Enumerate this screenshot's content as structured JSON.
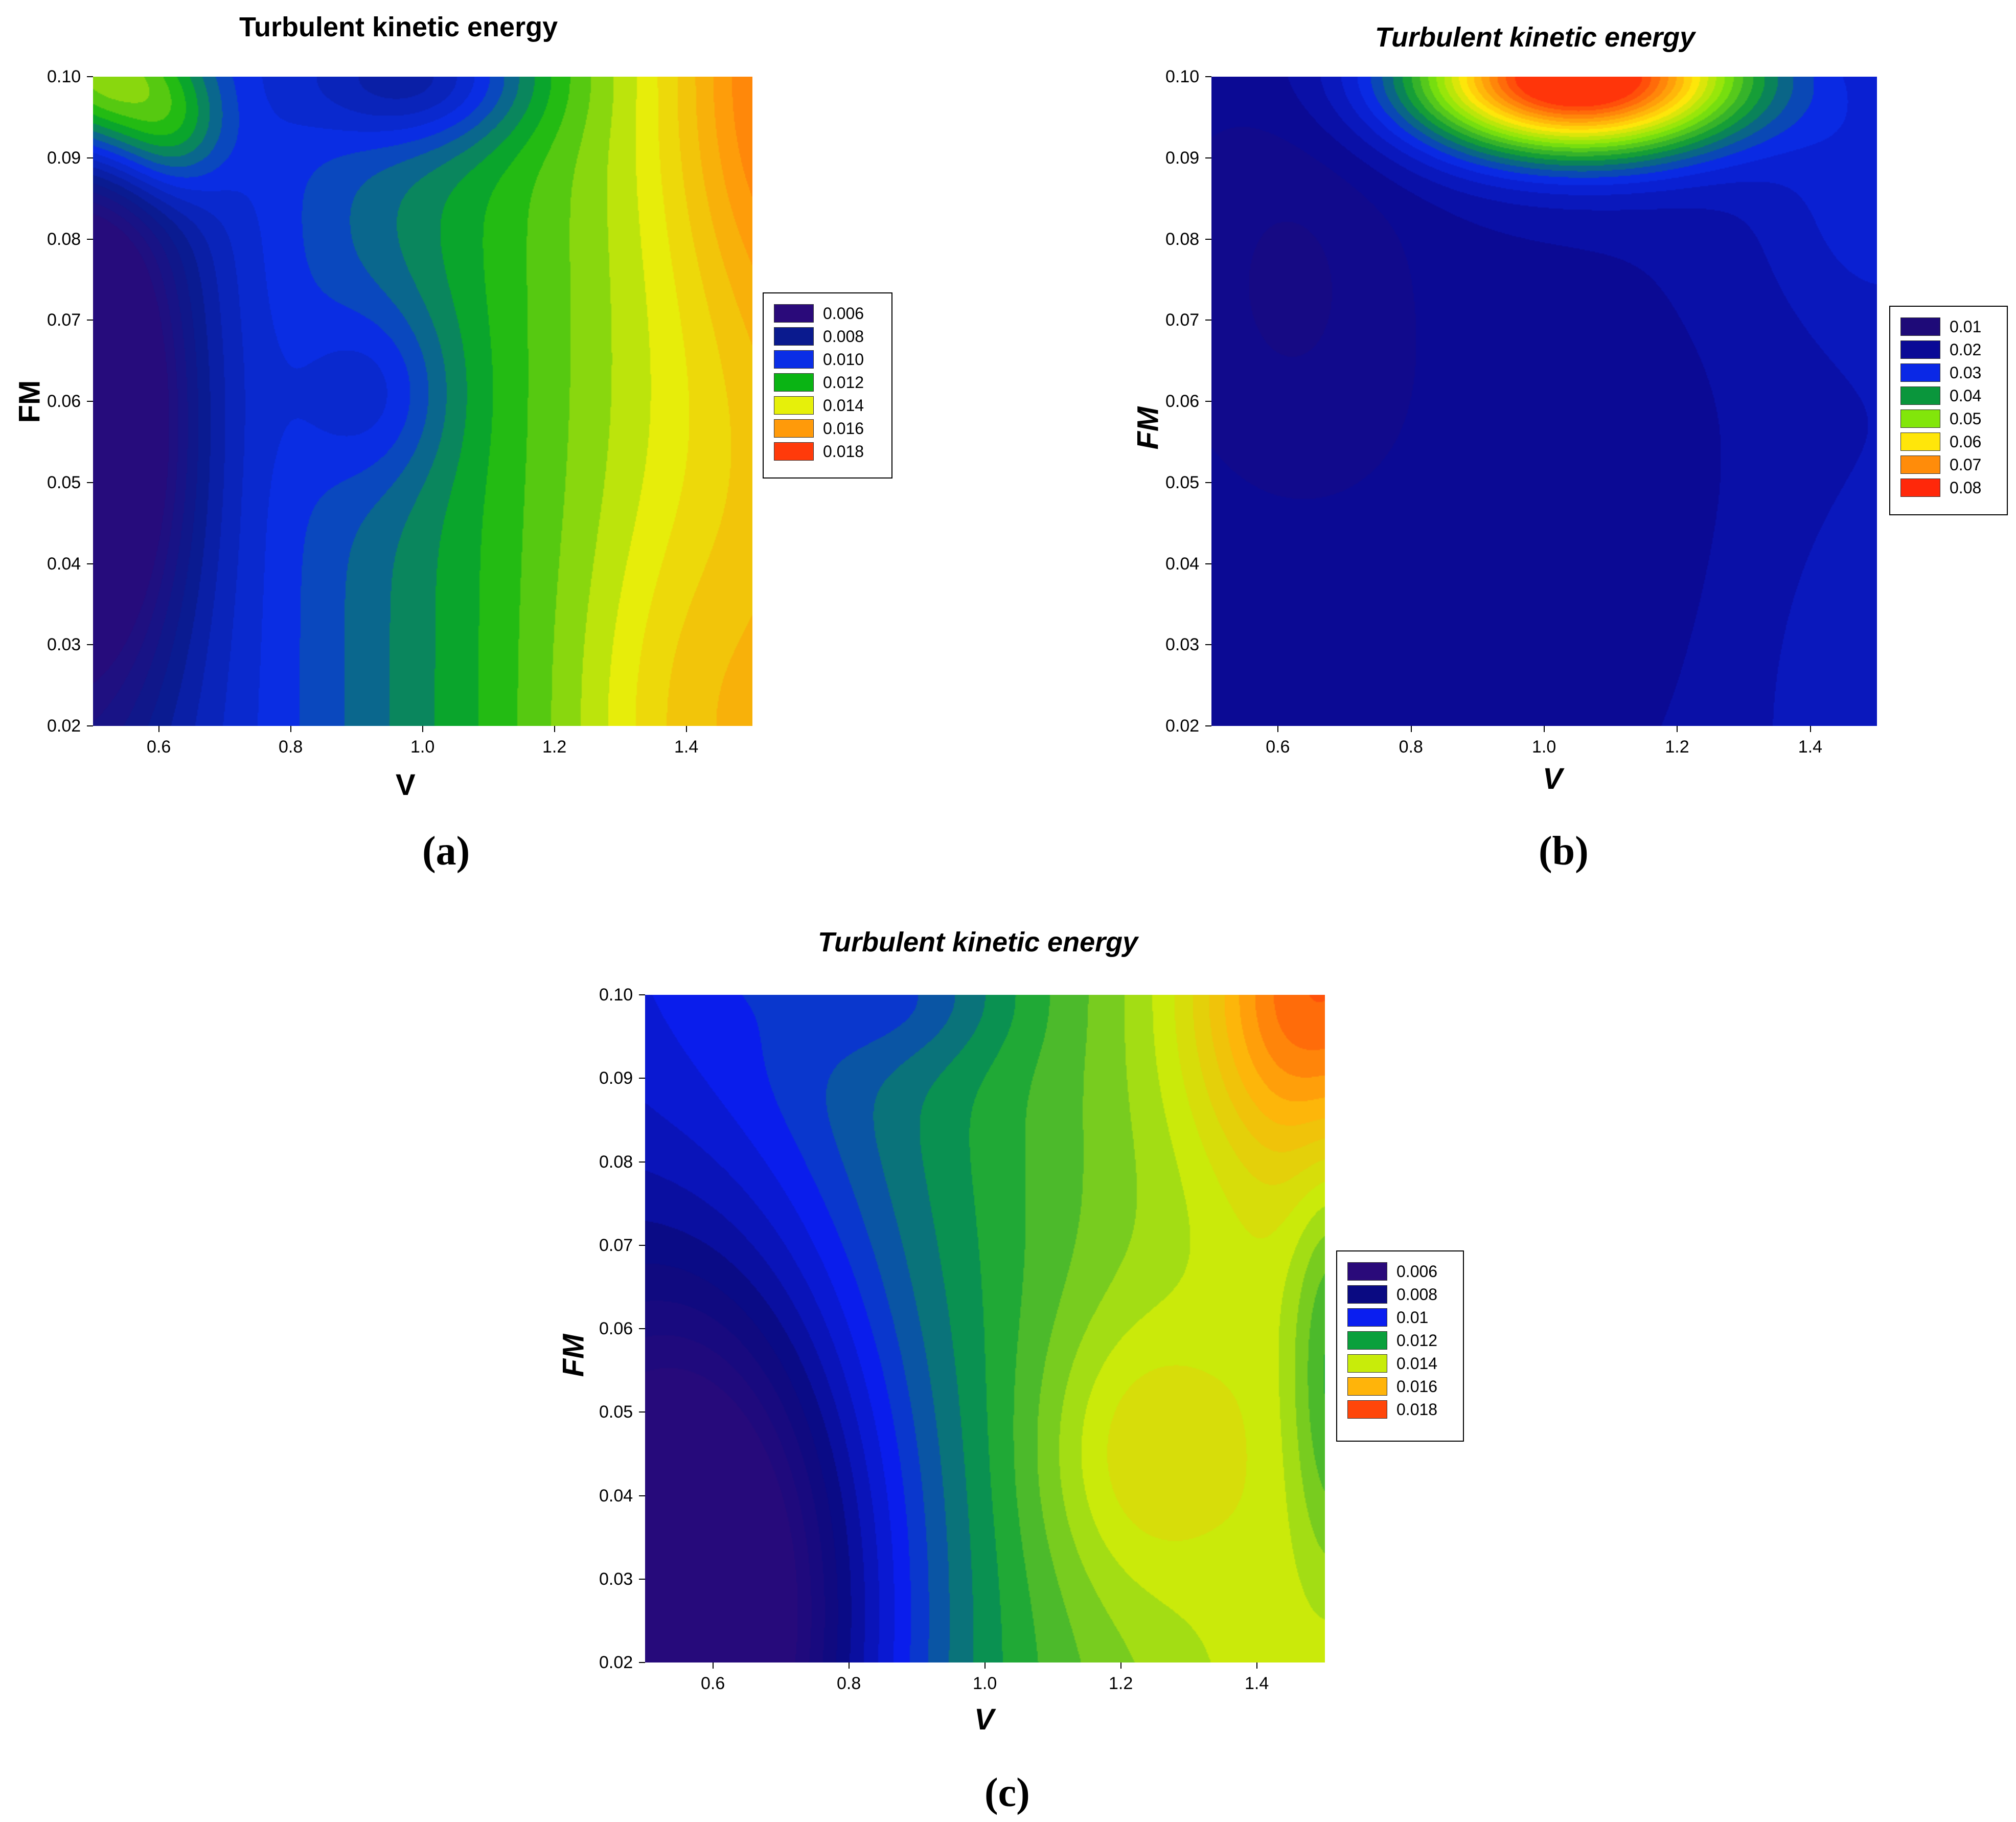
{
  "chart_data": [
    {
      "id": "a",
      "type": "contour",
      "title": "Turbulent kinetic energy",
      "title_italic": false,
      "xlabel": "V",
      "ylabel": "FM",
      "xlim": [
        0.5,
        1.5
      ],
      "ylim": [
        0.02,
        0.1
      ],
      "xticks": [
        "0.6",
        "0.8",
        "1.0",
        "1.2",
        "1.4"
      ],
      "yticks": [
        "0.02",
        "0.03",
        "0.04",
        "0.05",
        "0.06",
        "0.07",
        "0.08",
        "0.09",
        "0.10"
      ],
      "legend": {
        "levels": [
          "0.006",
          "0.008",
          "0.010",
          "0.012",
          "0.014",
          "0.016",
          "0.018"
        ],
        "colors": [
          "#2a0a7a",
          "#0a1a8e",
          "#0a2ee6",
          "#0ab414",
          "#e6f00a",
          "#ff9a0a",
          "#ff3a0a"
        ],
        "placement": "right"
      },
      "value_range": [
        0.006,
        0.019
      ],
      "grid": false,
      "caption": "(a)"
    },
    {
      "id": "b",
      "type": "contour",
      "title": "Turbulent kinetic energy",
      "title_italic": true,
      "xlabel": "V",
      "ylabel": "FM",
      "xlim": [
        0.5,
        1.5
      ],
      "ylim": [
        0.02,
        0.1
      ],
      "xticks": [
        "0.6",
        "0.8",
        "1.0",
        "1.2",
        "1.4"
      ],
      "yticks": [
        "0.02",
        "0.03",
        "0.04",
        "0.05",
        "0.06",
        "0.07",
        "0.08",
        "0.09",
        "0.10"
      ],
      "legend": {
        "levels": [
          "0.01",
          "0.02",
          "0.03",
          "0.04",
          "0.05",
          "0.06",
          "0.07",
          "0.08"
        ],
        "colors": [
          "#1e0a78",
          "#0a0a96",
          "#0a28e6",
          "#0a963c",
          "#82e60a",
          "#ffe60a",
          "#ff8c0a",
          "#ff280a"
        ],
        "placement": "right"
      },
      "value_range": [
        0.005,
        0.085
      ],
      "grid": false,
      "caption": "(b)"
    },
    {
      "id": "c",
      "type": "contour",
      "title": "Turbulent kinetic energy",
      "title_italic": true,
      "xlabel": "V",
      "ylabel": "FM",
      "xlim": [
        0.5,
        1.5
      ],
      "ylim": [
        0.02,
        0.1
      ],
      "xticks": [
        "0.6",
        "0.8",
        "1.0",
        "1.2",
        "1.4"
      ],
      "yticks": [
        "0.02",
        "0.03",
        "0.04",
        "0.05",
        "0.06",
        "0.07",
        "0.08",
        "0.09",
        "0.10"
      ],
      "legend": {
        "levels": [
          "0.006",
          "0.008",
          "0.01",
          "0.012",
          "0.014",
          "0.016",
          "0.018"
        ],
        "colors": [
          "#2a0a7a",
          "#0a0a82",
          "#0a1ef0",
          "#0aa03c",
          "#c8ec0a",
          "#ffb40a",
          "#ff460a"
        ],
        "placement": "right"
      },
      "value_range": [
        0.006,
        0.019
      ],
      "grid": false,
      "caption": "(c)"
    }
  ]
}
